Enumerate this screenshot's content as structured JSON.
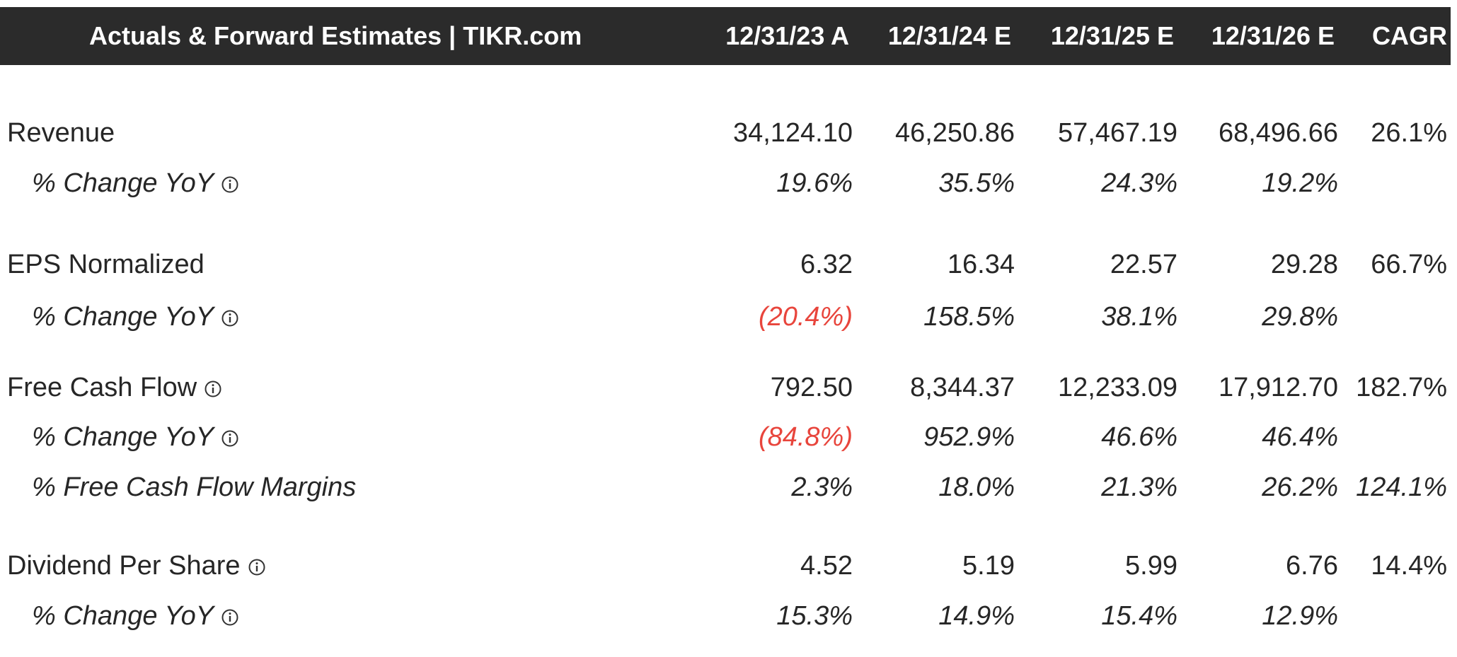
{
  "header": {
    "title": "Actuals & Forward Estimates | TIKR.com",
    "columns": [
      "12/31/23 A",
      "12/31/24 E",
      "12/31/25 E",
      "12/31/26 E",
      "CAGR"
    ]
  },
  "table": {
    "groups": [
      {
        "rows": [
          {
            "label": "Revenue",
            "values": [
              "34,124.10",
              "46,250.86",
              "57,467.19",
              "68,496.66",
              "26.1%"
            ]
          },
          {
            "label": "% Change YoY",
            "italic": true,
            "info": true,
            "values": [
              "19.6%",
              "35.5%",
              "24.3%",
              "19.2%"
            ]
          }
        ]
      },
      {
        "rows": [
          {
            "label": "EPS Normalized",
            "values": [
              "6.32",
              "16.34",
              "22.57",
              "29.28",
              "66.7%"
            ]
          },
          {
            "label": "% Change YoY",
            "italic": true,
            "info": true,
            "values": [
              "(20.4%)",
              "158.5%",
              "38.1%",
              "29.8%"
            ]
          }
        ]
      },
      {
        "rows": [
          {
            "label": "Free Cash Flow",
            "info": true,
            "values": [
              "792.50",
              "8,344.37",
              "12,233.09",
              "17,912.70",
              "182.7%"
            ]
          },
          {
            "label": "% Change YoY",
            "italic": true,
            "info": true,
            "values": [
              "(84.8%)",
              "952.9%",
              "46.6%",
              "46.4%"
            ]
          },
          {
            "label": "% Free Cash Flow Margins",
            "italic": true,
            "values": [
              "2.3%",
              "18.0%",
              "21.3%",
              "26.2%",
              "124.1%"
            ]
          }
        ]
      },
      {
        "rows": [
          {
            "label": "Dividend Per Share",
            "info": true,
            "values": [
              "4.52",
              "5.19",
              "5.99",
              "6.76",
              "14.4%"
            ]
          },
          {
            "label": "% Change YoY",
            "italic": true,
            "info": true,
            "values": [
              "15.3%",
              "14.9%",
              "15.4%",
              "12.9%"
            ]
          }
        ]
      }
    ]
  }
}
